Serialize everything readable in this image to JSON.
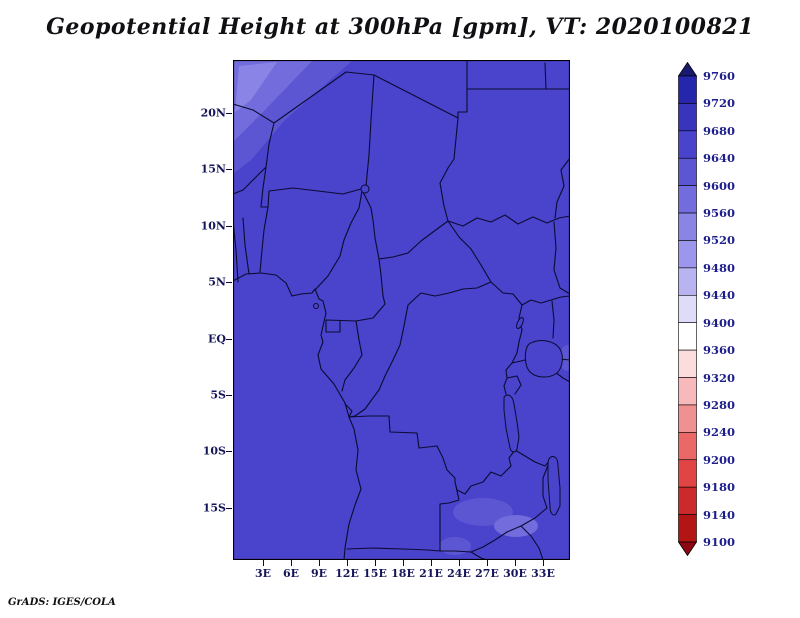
{
  "title": "Geopotential Height at 300hPa [gpm], VT: 2020100821",
  "credit": "GrADS: IGES/COLA",
  "map": {
    "lat_ticks": [
      "20N",
      "15N",
      "10N",
      "5N",
      "EQ",
      "5S",
      "10S",
      "15S"
    ],
    "lon_ticks": [
      "3E",
      "6E",
      "9E",
      "12E",
      "15E",
      "18E",
      "21E",
      "24E",
      "27E",
      "30E",
      "33E"
    ]
  },
  "colors": {
    "map_fill": "#4a43cb",
    "patch_a": "#5d56d3",
    "patch_b": "#726cdc",
    "patch_c": "#8a84e6",
    "border": "#0b0b32",
    "axis_label": "#15155a",
    "cbar_label": "#1d1d8c"
  },
  "colorbar": {
    "labels": [
      "9760",
      "9720",
      "9680",
      "9640",
      "9600",
      "9560",
      "9520",
      "9480",
      "9440",
      "9400",
      "9360",
      "9320",
      "9280",
      "9240",
      "9200",
      "9180",
      "9140",
      "9100"
    ],
    "segment_colors": [
      "#2526ac",
      "#3835bd",
      "#4a43cb",
      "#5d56d3",
      "#726cdc",
      "#8a84e6",
      "#9c97ec",
      "#b8b4f2",
      "#dedcf9",
      "#ffffff",
      "#fcdcdc",
      "#f7b9b9",
      "#f19090",
      "#ea6868",
      "#e04444",
      "#cc2a2a",
      "#b31515"
    ],
    "top_arrow_color": "#191970",
    "bottom_arrow_color": "#8c0710"
  },
  "chart_data": {
    "type": "heatmap",
    "title": "Geopotential Height at 300hPa [gpm], VT: 2020100821",
    "variable": "Geopotential Height",
    "level_hPa": 300,
    "units": "gpm",
    "valid_time": "2020100821",
    "x_ticks": [
      "3E",
      "6E",
      "9E",
      "12E",
      "15E",
      "18E",
      "21E",
      "24E",
      "27E",
      "30E",
      "33E"
    ],
    "y_ticks": [
      "20N",
      "15N",
      "10N",
      "5N",
      "EQ",
      "5S",
      "10S",
      "15S"
    ],
    "x_range": [
      "0E",
      "36E"
    ],
    "y_range": [
      "19S",
      "24N"
    ],
    "colorbar_levels_top_to_bottom": [
      9760,
      9720,
      9680,
      9640,
      9600,
      9560,
      9520,
      9480,
      9440,
      9400,
      9360,
      9320,
      9280,
      9240,
      9200,
      9180,
      9140,
      9100
    ],
    "field_summary": "Shaded contour map over central Africa with political borders; heights nearly uniform at about 9640-9680 gpm across the whole domain, with slightly lower values (~9560-9640 gpm, lighter blue-violet shading) in the far northwest corner and small lighter patches in the southeast near 22-31E, 11-17S.",
    "legend_position": "right",
    "grid": false
  }
}
